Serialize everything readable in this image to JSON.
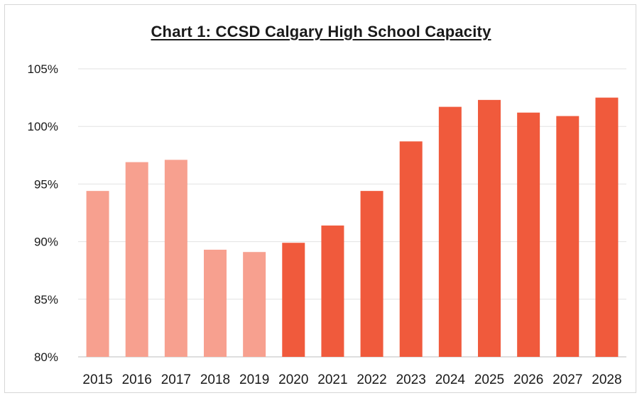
{
  "chart_data": {
    "type": "bar",
    "title": "Chart 1: CCSD Calgary High School Capacity",
    "xlabel": "",
    "ylabel": "",
    "ylim": [
      80,
      105
    ],
    "yticks": [
      "80%",
      "85%",
      "90%",
      "95%",
      "100%",
      "105%"
    ],
    "ytick_values": [
      80,
      85,
      90,
      95,
      100,
      105
    ],
    "grid": true,
    "categories": [
      "2015",
      "2016",
      "2017",
      "2018",
      "2019",
      "2020",
      "2021",
      "2022",
      "2023",
      "2024",
      "2025",
      "2026",
      "2027",
      "2028"
    ],
    "values": [
      94.4,
      96.9,
      97.1,
      89.3,
      89.1,
      89.9,
      91.4,
      94.4,
      98.7,
      101.7,
      102.3,
      101.2,
      100.9,
      102.5
    ],
    "bar_colors": [
      "#f7a08f",
      "#f7a08f",
      "#f7a08f",
      "#f7a08f",
      "#f7a08f",
      "#f05a3c",
      "#f05a3c",
      "#f05a3c",
      "#f05a3c",
      "#f05a3c",
      "#f05a3c",
      "#f05a3c",
      "#f05a3c",
      "#f05a3c"
    ]
  }
}
